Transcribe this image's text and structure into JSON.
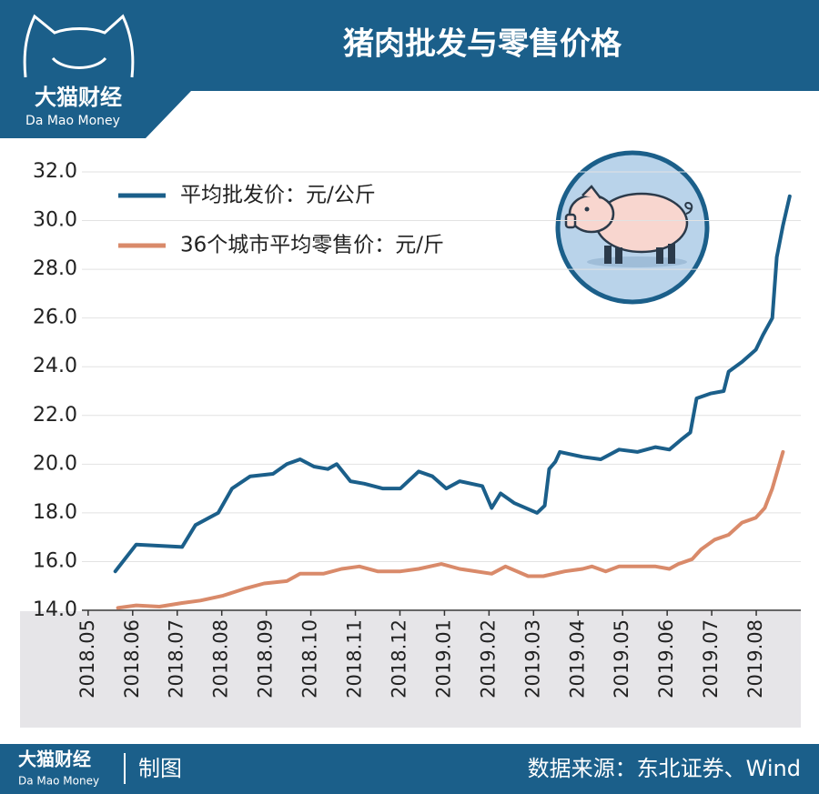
{
  "header": {
    "logo": "大猫财经",
    "logo_sub": "Da Mao Money"
  },
  "chart_data": {
    "type": "line",
    "title": "猪肉批发与零售价格",
    "xlim": [
      -0.14,
      16.0
    ],
    "xticks": [
      {
        "value": 0,
        "label": "2018.05"
      },
      {
        "value": 1,
        "label": "2018.06"
      },
      {
        "value": 2,
        "label": "2018.07"
      },
      {
        "value": 3,
        "label": "2018.08"
      },
      {
        "value": 4,
        "label": "2018.09"
      },
      {
        "value": 5,
        "label": "2018.10"
      },
      {
        "value": 6,
        "label": "2018.11"
      },
      {
        "value": 7,
        "label": "2018.12"
      },
      {
        "value": 8,
        "label": "2019.01"
      },
      {
        "value": 9,
        "label": "2019.02"
      },
      {
        "value": 10,
        "label": "2019.03"
      },
      {
        "value": 11,
        "label": "2019.04"
      },
      {
        "value": 12,
        "label": "2019.05"
      },
      {
        "value": 13,
        "label": "2019.06"
      },
      {
        "value": 14,
        "label": "2019.07"
      },
      {
        "value": 15,
        "label": "2019.08"
      }
    ],
    "ylim": [
      14,
      32
    ],
    "yticks": [
      {
        "value": 14,
        "label": "14.0"
      },
      {
        "value": 16,
        "label": "16.0"
      },
      {
        "value": 18,
        "label": "18.0"
      },
      {
        "value": 20,
        "label": "20.0"
      },
      {
        "value": 22,
        "label": "22.0"
      },
      {
        "value": 24,
        "label": "24.0"
      },
      {
        "value": 26,
        "label": "26.0"
      },
      {
        "value": 28,
        "label": "28.0"
      },
      {
        "value": 30,
        "label": "30.0"
      },
      {
        "value": 32,
        "label": "32.0"
      }
    ],
    "grid": true,
    "legend": "upper left",
    "series": [
      {
        "name": "平均批发价：元/公斤",
        "color": "#1b5f8a",
        "x": [
          0.61,
          1.08,
          2.11,
          2.41,
          2.92,
          3.23,
          3.64,
          4.15,
          4.46,
          4.76,
          5.07,
          5.38,
          5.58,
          5.89,
          6.2,
          6.61,
          7.01,
          7.42,
          7.73,
          8.04,
          8.34,
          8.85,
          9.06,
          9.26,
          9.57,
          10.08,
          10.25,
          10.35,
          10.49,
          10.59,
          11.1,
          11.51,
          11.92,
          12.33,
          12.74,
          13.05,
          13.31,
          13.52,
          13.66,
          13.97,
          14.27,
          14.38,
          14.68,
          14.99,
          15.15,
          15.36,
          15.46,
          15.6,
          15.75
        ],
        "values": [
          15.6,
          16.7,
          16.6,
          17.5,
          18.0,
          19.0,
          19.5,
          19.6,
          20.0,
          20.2,
          19.9,
          19.8,
          20.0,
          19.3,
          19.2,
          19.0,
          19.0,
          19.7,
          19.5,
          19.0,
          19.3,
          19.1,
          18.2,
          18.8,
          18.4,
          18.0,
          18.3,
          19.8,
          20.1,
          20.5,
          20.3,
          20.2,
          20.6,
          20.5,
          20.7,
          20.6,
          21.0,
          21.3,
          22.7,
          22.9,
          23.0,
          23.8,
          24.2,
          24.7,
          25.3,
          26.0,
          28.5,
          29.8,
          31.0
        ]
      },
      {
        "name": "36个城市平均零售价：元/斤",
        "color": "#d98a6a",
        "x": [
          0.67,
          1.08,
          1.6,
          2.11,
          2.52,
          3.03,
          3.54,
          3.95,
          4.46,
          4.76,
          5.28,
          5.69,
          6.09,
          6.5,
          7.01,
          7.42,
          7.93,
          8.34,
          9.06,
          9.37,
          9.88,
          10.22,
          10.7,
          11.1,
          11.31,
          11.62,
          11.92,
          12.33,
          12.74,
          13.05,
          13.25,
          13.56,
          13.76,
          14.07,
          14.38,
          14.68,
          14.99,
          15.19,
          15.36,
          15.6
        ],
        "values": [
          14.1,
          14.2,
          14.15,
          14.3,
          14.4,
          14.6,
          14.9,
          15.1,
          15.2,
          15.5,
          15.5,
          15.7,
          15.8,
          15.6,
          15.6,
          15.7,
          15.9,
          15.7,
          15.5,
          15.8,
          15.4,
          15.4,
          15.6,
          15.7,
          15.8,
          15.6,
          15.8,
          15.8,
          15.8,
          15.7,
          15.9,
          16.1,
          16.5,
          16.9,
          17.1,
          17.6,
          17.8,
          18.2,
          19.0,
          20.5
        ]
      }
    ]
  },
  "footer": {
    "logo": "大猫财经",
    "logo_sub": "Da Mao Money",
    "credit": "制图",
    "source": "数据来源：东北证券、Wind"
  }
}
